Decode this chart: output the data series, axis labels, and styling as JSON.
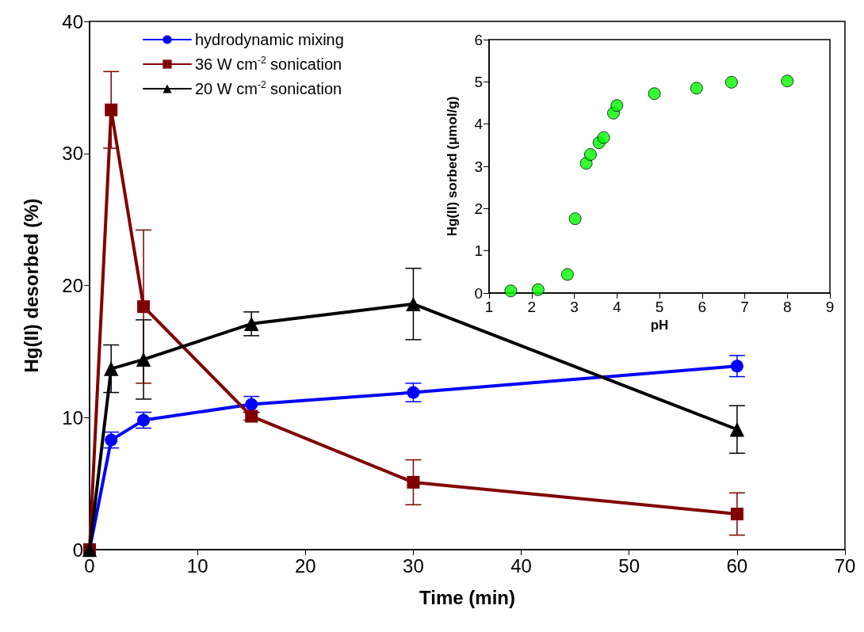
{
  "chart_data": [
    {
      "type": "line",
      "xlabel": "Time (min)",
      "ylabel": "Hg(II) desorbed (%)",
      "x": [
        0,
        2,
        5,
        15,
        30,
        60
      ],
      "xlim": [
        0,
        70
      ],
      "xticks": [
        0,
        10,
        20,
        30,
        40,
        50,
        60,
        70
      ],
      "ylim": [
        0,
        40
      ],
      "yticks": [
        0,
        10,
        20,
        30,
        40
      ],
      "grid": false,
      "legend": "top left",
      "line_style": "solid",
      "series": [
        {
          "name": "hydrodynamic mixing",
          "color": "#0000ff",
          "marker": "circle",
          "values": [
            0,
            8.3,
            9.8,
            11.0,
            11.9,
            13.9
          ],
          "errors": [
            null,
            0.6,
            0.6,
            0.6,
            0.7,
            0.8
          ]
        },
        {
          "name": "36 W cm$^{-2}$ sonication",
          "color": "#800000",
          "marker": "square",
          "values": [
            0,
            33.3,
            18.4,
            10.1,
            5.1,
            2.7
          ],
          "errors": [
            null,
            2.9,
            5.8,
            0.3,
            1.7,
            1.6
          ]
        },
        {
          "name": "20 W cm$^{-2}$ sonication",
          "color": "#000000",
          "marker": "triangle",
          "values": [
            0,
            13.7,
            14.4,
            17.1,
            18.6,
            9.1
          ],
          "errors": [
            null,
            1.8,
            3.0,
            0.9,
            2.7,
            1.8
          ]
        }
      ]
    },
    {
      "type": "scatter",
      "xlabel": "pH",
      "ylabel": "Hg(II) sorbed (μmol/g)",
      "xlim": [
        1,
        9
      ],
      "xticks": [
        1,
        2,
        3,
        4,
        5,
        6,
        7,
        8,
        9
      ],
      "ylim": [
        0,
        6
      ],
      "yticks": [
        0,
        1,
        2,
        3,
        4,
        5,
        6
      ],
      "grid": false,
      "marker": "circle",
      "series": [
        {
          "color": "#00ff00",
          "x": [
            1.51,
            2.15,
            2.84,
            3.02,
            3.28,
            3.38,
            3.58,
            3.69,
            3.92,
            4.0,
            4.88,
            5.87,
            6.69,
            8.0
          ],
          "values": [
            0.05,
            0.08,
            0.44,
            1.76,
            3.07,
            3.28,
            3.56,
            3.68,
            4.26,
            4.44,
            4.72,
            4.85,
            4.99,
            5.02
          ]
        }
      ]
    }
  ]
}
